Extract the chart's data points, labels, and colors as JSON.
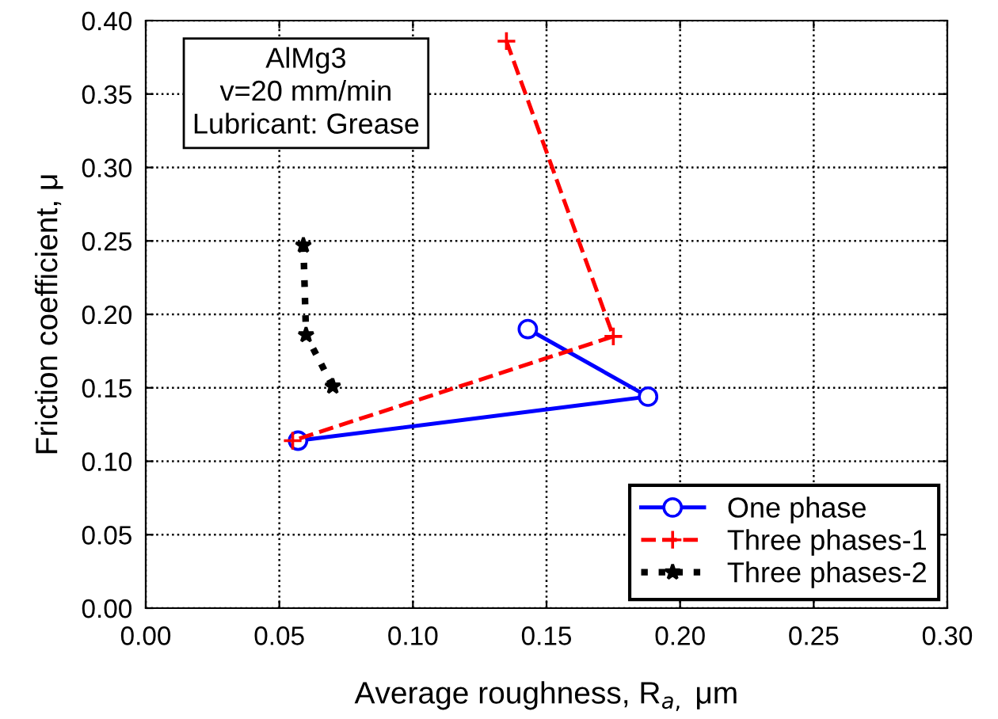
{
  "chart_data": {
    "type": "line",
    "xlabel": "Average roughness, R$_{a,}$ μm",
    "ylabel": "Friction coefficient, μ",
    "annotations": [
      "AlMg3\nv=20 mm/min\nLubricant: Grease"
    ],
    "series": [
      {
        "name": "One phase",
        "color": "#0000ff",
        "marker": "circle",
        "line_style": "solid",
        "x": [
          0.143,
          0.188,
          0.057
        ],
        "values": [
          0.19,
          0.144,
          0.114
        ]
      },
      {
        "name": "Three phases-1",
        "color": "#ff0000",
        "marker": "cross",
        "line_style": "dashed",
        "x": [
          0.135,
          0.175,
          0.055
        ],
        "values": [
          0.386,
          0.185,
          0.114
        ]
      },
      {
        "name": "Three phases-2",
        "color": "#000000",
        "marker": "star",
        "line_style": "dotted",
        "x": [
          0.059,
          0.06,
          0.07
        ],
        "values": [
          0.247,
          0.186,
          0.151
        ]
      }
    ],
    "xlim": [
      0,
      0.3
    ],
    "xticks": [
      {
        "value": 0,
        "label": "0.00"
      },
      {
        "value": 0.05,
        "label": "0.05"
      },
      {
        "value": 0.1,
        "label": "0.10"
      },
      {
        "value": 0.15,
        "label": "0.15"
      },
      {
        "value": 0.2,
        "label": "0.20"
      },
      {
        "value": 0.25,
        "label": "0.25"
      },
      {
        "value": 0.3,
        "label": "0.30"
      }
    ],
    "ylim": [
      0,
      0.4
    ],
    "yticks": [
      {
        "value": 0,
        "label": "0.00"
      },
      {
        "value": 0.05,
        "label": "0.05"
      },
      {
        "value": 0.1,
        "label": "0.10"
      },
      {
        "value": 0.15,
        "label": "0.15"
      },
      {
        "value": 0.2,
        "label": "0.20"
      },
      {
        "value": 0.25,
        "label": "0.25"
      },
      {
        "value": 0.3,
        "label": "0.30"
      },
      {
        "value": 0.35,
        "label": "0.35"
      },
      {
        "value": 0.4,
        "label": "0.40"
      }
    ],
    "grid": true,
    "legend": "bottom right"
  }
}
